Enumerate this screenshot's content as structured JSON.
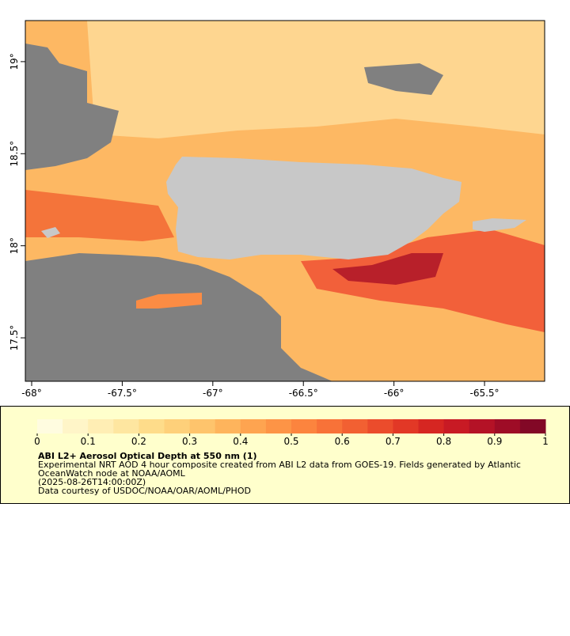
{
  "map": {
    "xlim": [
      -68.035,
      -65.168
    ],
    "ylim": [
      17.264,
      19.223
    ],
    "xticks": [
      {
        "value": -68,
        "label": "-68°"
      },
      {
        "value": -67.5,
        "label": "-67.5°"
      },
      {
        "value": -67,
        "label": "-67°"
      },
      {
        "value": -66.5,
        "label": "-66.5°"
      },
      {
        "value": -66,
        "label": "-66°"
      },
      {
        "value": -65.5,
        "label": "-65.5°"
      }
    ],
    "yticks": [
      {
        "value": 17.5,
        "label": "17.5°"
      },
      {
        "value": 18,
        "label": "18°"
      },
      {
        "value": 18.5,
        "label": "18.5°"
      },
      {
        "value": 19,
        "label": "19°"
      }
    ]
  },
  "colorbar": {
    "lim": [
      0,
      1
    ],
    "ticks": [
      0,
      0.1,
      0.2,
      0.3,
      0.4,
      0.5,
      0.6,
      0.7,
      0.8,
      0.9,
      1
    ],
    "colors": [
      "#fffce0",
      "#fff5c8",
      "#ffeeb4",
      "#fee6a0",
      "#fedc8a",
      "#fed07a",
      "#fec46c",
      "#feb45c",
      "#fea450",
      "#fd9446",
      "#fc843e",
      "#f87238",
      "#f26032",
      "#eb4c2c",
      "#e23826",
      "#d62622",
      "#c81a24",
      "#b41226",
      "#9e0c26",
      "#820826"
    ]
  },
  "caption": {
    "title": "ABI L2+ Aerosol Optical Depth at 550 nm (1)",
    "lines": [
      "Experimental NRT AOD 4 hour composite created from ABI L2 data from GOES-19. Fields generated by Atlantic",
      "OceanWatch node at NOAA/AOML",
      "(2025-08-26T14:00:00Z)",
      "Data courtesy of USDOC/NOAA/OAR/AOML/PHOD"
    ]
  }
}
